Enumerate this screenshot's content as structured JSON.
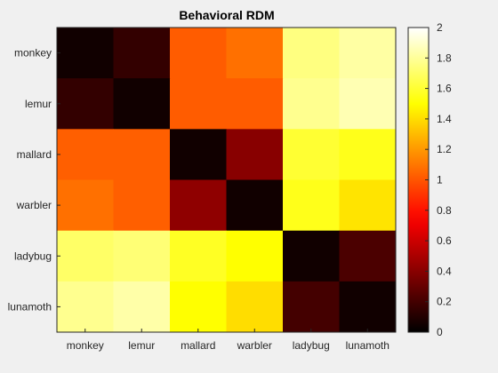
{
  "chart_data": {
    "type": "heatmap",
    "title": "Behavioral RDM",
    "xlabel": "",
    "ylabel": "",
    "x_categories": [
      "monkey",
      "lemur",
      "mallard",
      "warbler",
      "ladybug",
      "lunamoth"
    ],
    "y_categories": [
      "monkey",
      "lemur",
      "mallard",
      "warbler",
      "ladybug",
      "lunamoth"
    ],
    "values": [
      [
        0.05,
        0.15,
        1.02,
        1.08,
        1.75,
        1.82
      ],
      [
        0.15,
        0.05,
        1.02,
        1.02,
        1.78,
        1.85
      ],
      [
        1.03,
        1.03,
        0.05,
        0.4,
        1.6,
        1.55
      ],
      [
        1.08,
        1.03,
        0.42,
        0.05,
        1.55,
        1.42
      ],
      [
        1.7,
        1.73,
        1.57,
        1.5,
        0.05,
        0.22
      ],
      [
        1.78,
        1.83,
        1.5,
        1.4,
        0.2,
        0.05
      ]
    ],
    "colormap": "hot",
    "colorbar": {
      "range": [
        0,
        2
      ],
      "ticks": [
        0,
        0.2,
        0.4,
        0.6,
        0.8,
        1,
        1.2,
        1.4,
        1.6,
        1.8,
        2
      ],
      "tick_labels": [
        "0",
        "0.2",
        "0.4",
        "0.6",
        "0.8",
        "1",
        "1.2",
        "1.4",
        "1.6",
        "1.8",
        "2"
      ]
    },
    "grid": false,
    "legend": "none"
  }
}
